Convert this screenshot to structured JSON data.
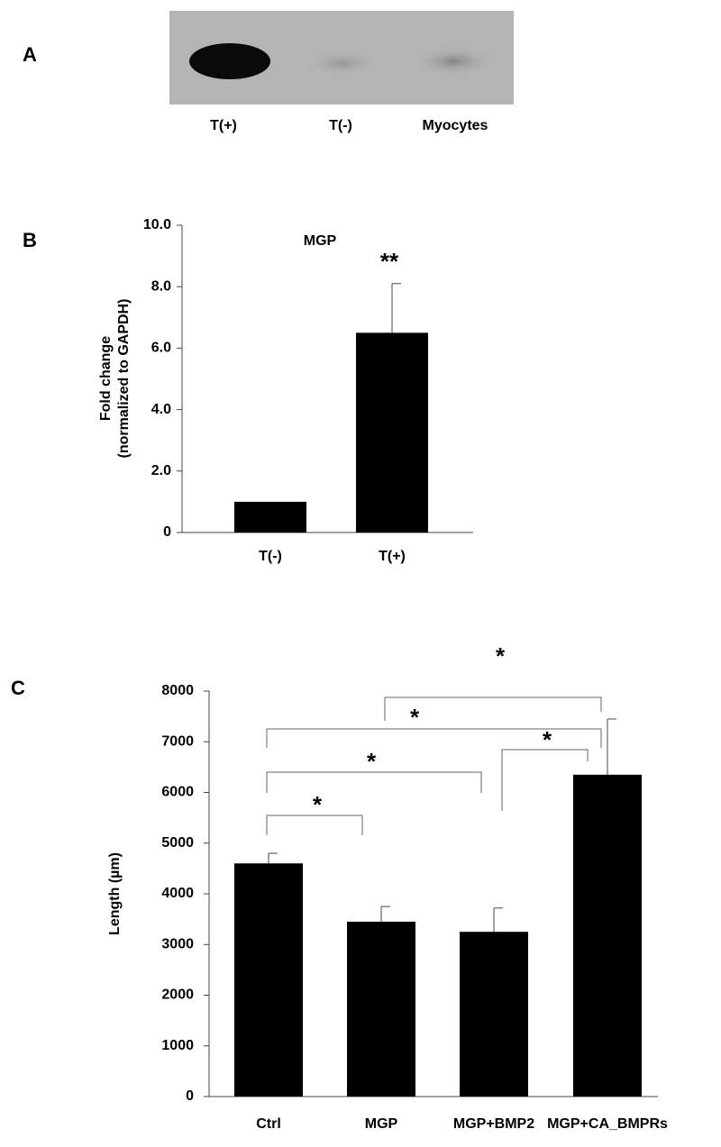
{
  "blot": {
    "panel": "A",
    "lanes": [
      "T(+)",
      "T(-)",
      "Myocytes"
    ]
  },
  "chart_data": [
    {
      "type": "bar",
      "panel": "B",
      "title": "MGP",
      "ylabel": [
        "Fold change",
        "(normalized to GAPDH)"
      ],
      "categories": [
        "T(-)",
        "T(+)"
      ],
      "values": [
        1.0,
        6.5
      ],
      "errors": [
        null,
        1.6
      ],
      "annotations": [
        null,
        "**"
      ],
      "color": "#000000",
      "ylim": [
        0,
        10
      ],
      "yticks": [
        0,
        {
          "value": 2,
          "label": "2.0"
        },
        {
          "value": 4,
          "label": "4.0"
        },
        {
          "value": 6,
          "label": "6.0"
        },
        {
          "value": 8,
          "label": "8.0"
        },
        {
          "value": 10,
          "label": "10.0"
        }
      ]
    },
    {
      "type": "bar",
      "panel": "C",
      "ylabel": [
        "Length (µm)"
      ],
      "categories": [
        "Ctrl",
        "MGP",
        "MGP+BMP2",
        "MGP+CA_BMPRs"
      ],
      "values": [
        4600,
        3450,
        3250,
        6350
      ],
      "errors": [
        200,
        300,
        470,
        1100
      ],
      "significance": [
        "*",
        "*",
        "*",
        "*",
        "*"
      ],
      "color": "#000000",
      "ylim": [
        0,
        8000
      ],
      "yticks": [
        0,
        1000,
        2000,
        3000,
        4000,
        5000,
        6000,
        7000,
        8000
      ]
    }
  ]
}
